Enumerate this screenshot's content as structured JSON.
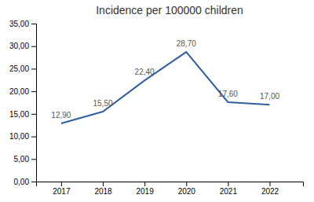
{
  "chart_data": {
    "type": "line",
    "title": "Incidence per 100000 children",
    "x": [
      2017,
      2018,
      2019,
      2020,
      2021,
      2022
    ],
    "values": [
      12.9,
      15.5,
      22.4,
      28.7,
      17.6,
      17.0
    ],
    "value_labels": [
      "12,90",
      "15,50",
      "22,40",
      "28,70",
      "17,60",
      "17,00"
    ],
    "data_labels": true,
    "color": "#2e5fa3",
    "xlim": [
      2016.4,
      2022.8
    ],
    "xticks": [
      2017,
      2018,
      2019,
      2020,
      2021,
      2022
    ],
    "ylim": [
      0,
      35
    ],
    "yticks": [
      {
        "value": 0,
        "label": "0,00"
      },
      {
        "value": 5,
        "label": "5,00"
      },
      {
        "value": 10,
        "label": "10,00"
      },
      {
        "value": 15,
        "label": "15,00"
      },
      {
        "value": 20,
        "label": "20,00"
      },
      {
        "value": 25,
        "label": "25,00"
      },
      {
        "value": 30,
        "label": "30,00"
      },
      {
        "value": 35,
        "label": "35,00"
      }
    ],
    "grid": false
  }
}
